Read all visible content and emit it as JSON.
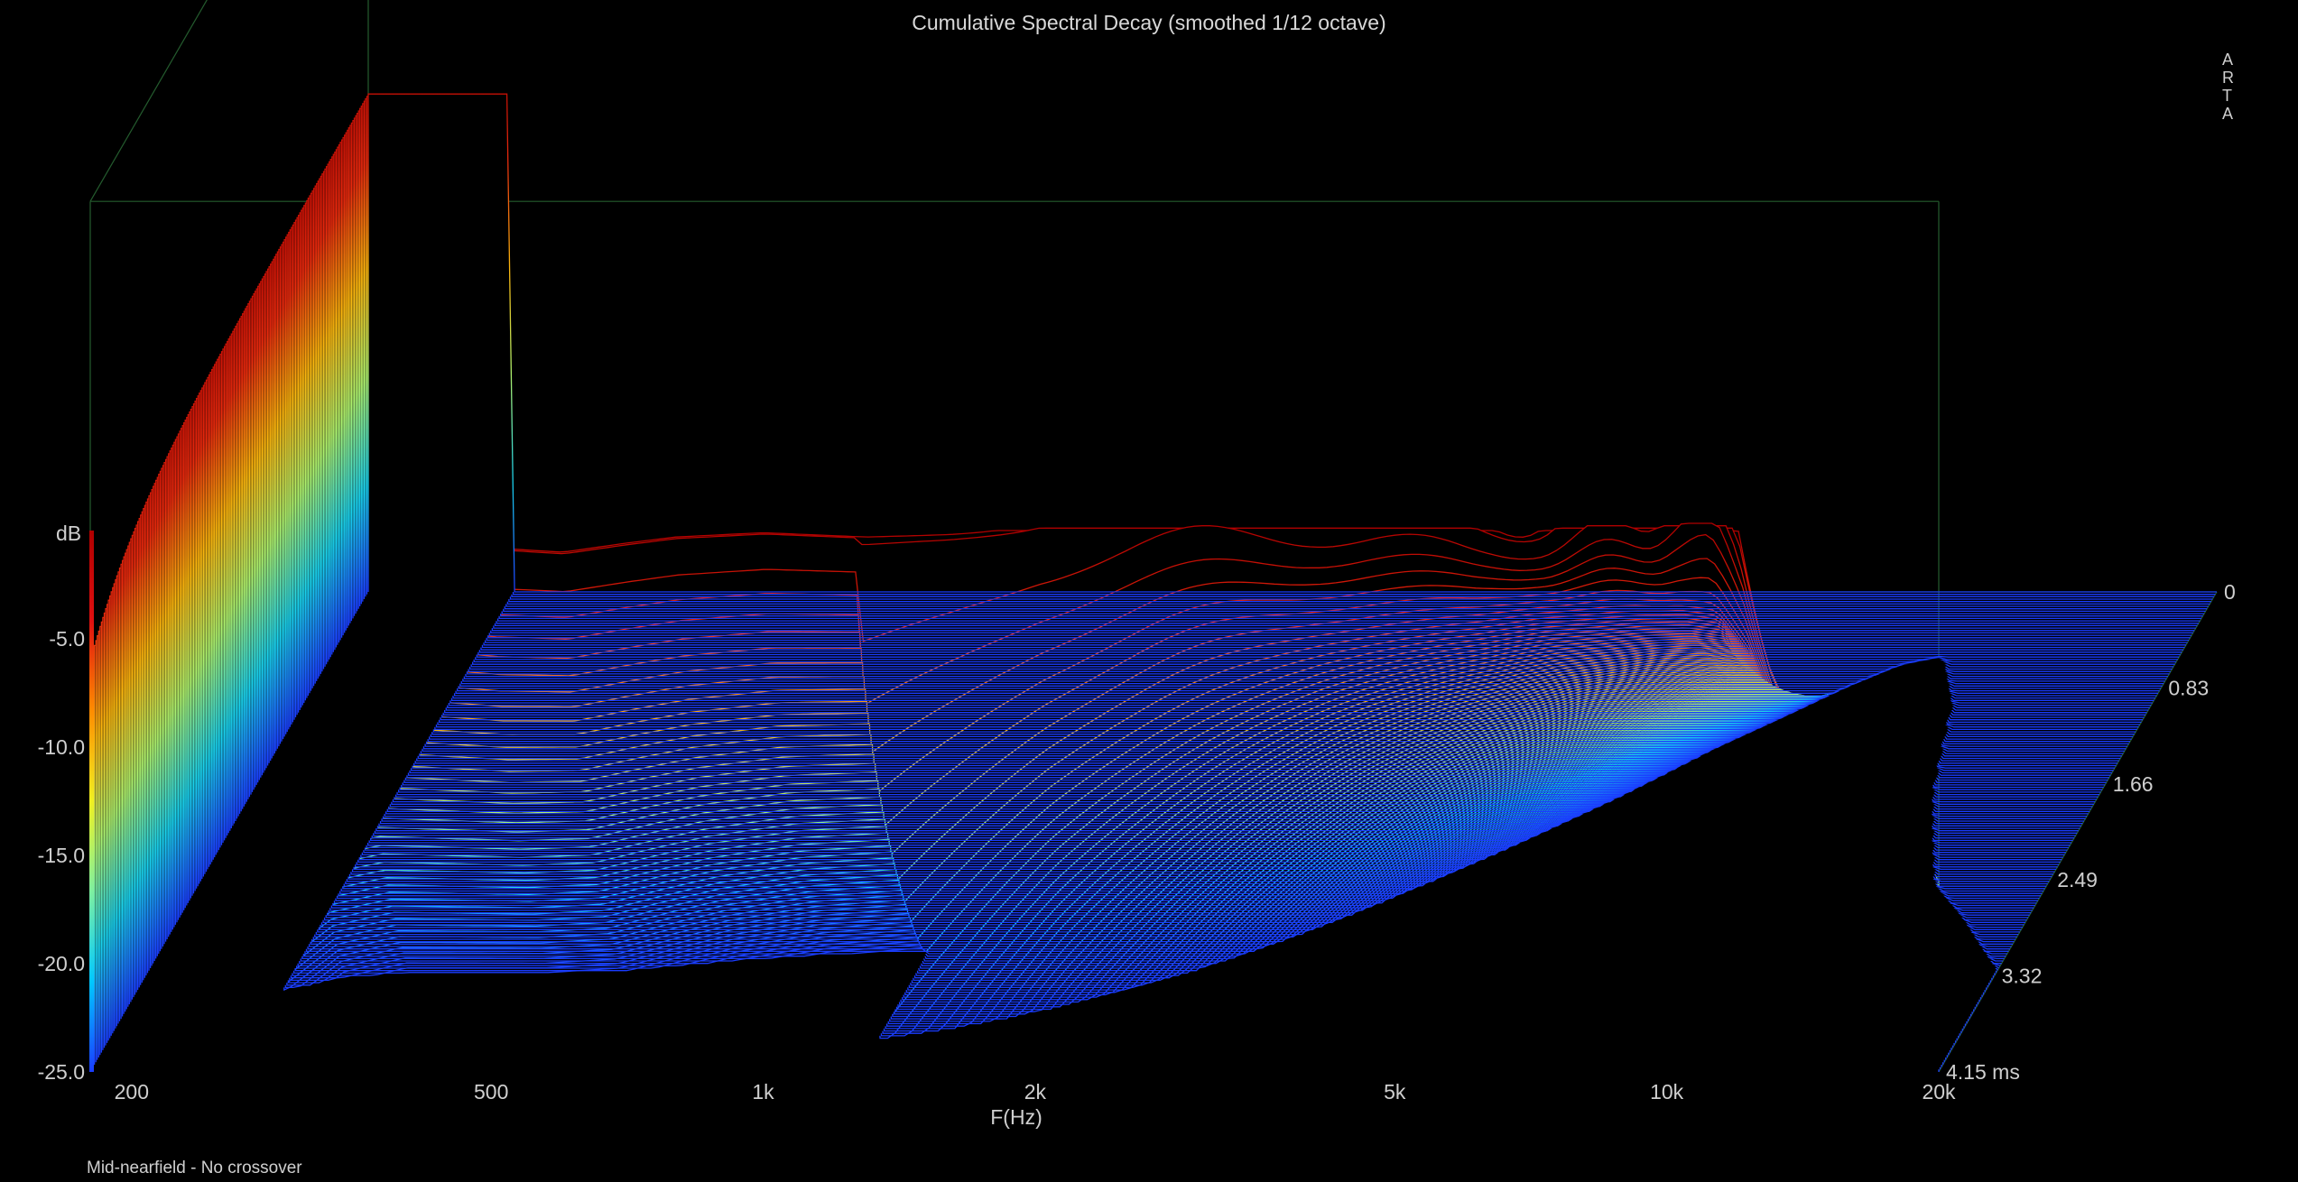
{
  "chart_data": {
    "type": "waterfall-3d",
    "title": "Cumulative Spectral Decay (smoothed 1/12 octave)",
    "xlabel": "F(Hz)",
    "zlabel": "dB",
    "time_unit": "ms",
    "x_scale": "log",
    "xlim": [
      180,
      20000
    ],
    "ylim": [
      -25,
      0
    ],
    "tlim": [
      0,
      4.15
    ],
    "x_ticks": [
      {
        "value": 200,
        "label": "200"
      },
      {
        "value": 500,
        "label": "500"
      },
      {
        "value": 1000,
        "label": "1k"
      },
      {
        "value": 2000,
        "label": "2k"
      },
      {
        "value": 5000,
        "label": "5k"
      },
      {
        "value": 10000,
        "label": "10k"
      },
      {
        "value": 20000,
        "label": "20k"
      }
    ],
    "y_ticks": [
      "-5.0",
      "-10.0",
      "-15.0",
      "-20.0",
      "-25.0"
    ],
    "time_ticks": [
      "0",
      "0.83",
      "1.66",
      "2.49",
      "3.32",
      "4.15 ms"
    ],
    "slice_count": 200,
    "initial_response": {
      "freq_hz": [
        260,
        300,
        350,
        400,
        500,
        600,
        700,
        800,
        1000,
        1300,
        1600,
        2000,
        2500,
        3000,
        4000,
        5000,
        6000,
        7000,
        8000,
        9000,
        10000,
        11000,
        12000,
        13000,
        15000,
        17000,
        20000
      ],
      "db": [
        -2.0,
        -0.3,
        0.0,
        -0.3,
        -0.8,
        -1.0,
        -0.6,
        -0.3,
        -0.1,
        -0.3,
        -0.2,
        0.0,
        -0.2,
        -0.3,
        -0.5,
        -0.8,
        -1.0,
        -1.0,
        -1.2,
        -1.3,
        -1.5,
        -2.0,
        -4.0,
        -7.5,
        -12.0,
        -14.0,
        -17.0
      ]
    },
    "colorbar": {
      "orientation": "vertical",
      "colors": [
        "#1a3cff",
        "#00c8ff",
        "#7ef0a0",
        "#f0f020",
        "#ff8c00",
        "#e01010",
        "#b00000"
      ]
    },
    "grid": false,
    "footnote": "Mid-nearfield - No crossover",
    "brand": [
      "A",
      "R",
      "T",
      "A"
    ]
  }
}
